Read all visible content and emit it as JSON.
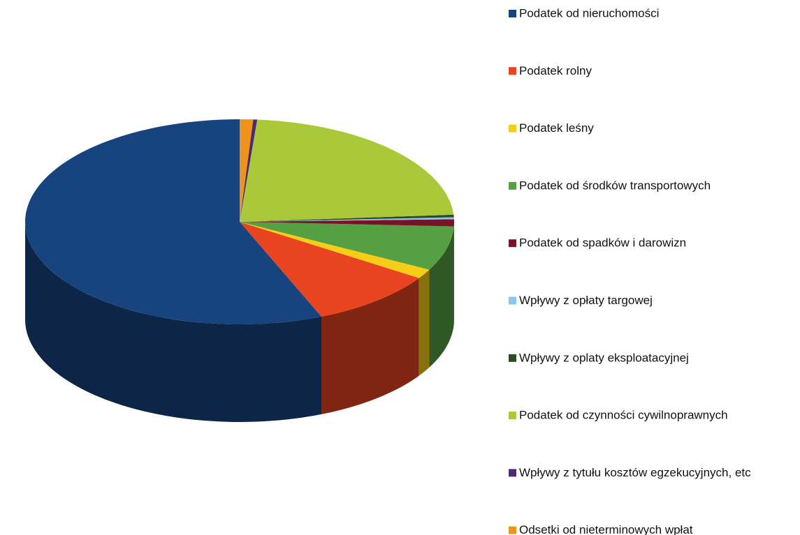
{
  "chart_data": {
    "type": "pie3d",
    "series": [
      {
        "name": "Podatek od nieruchomości",
        "color": "#17437f",
        "value": 56
      },
      {
        "name": "Podatek rolny",
        "color": "#e8441f",
        "value": 9.5
      },
      {
        "name": "Podatek leśny",
        "color": "#f6cd17",
        "value": 1.5
      },
      {
        "name": "Podatek od środków transportowych",
        "color": "#55a043",
        "value": 7
      },
      {
        "name": "Podatek od spadków i darowizn",
        "color": "#7a1226",
        "value": 1.1
      },
      {
        "name": "Wpływy z opłaty targowej",
        "color": "#8cc6e8",
        "value": 0.3
      },
      {
        "name": "Wpływy z oplaty eksploatacyjnej",
        "color": "#2f4b23",
        "value": 0.4
      },
      {
        "name": "Podatek od czynności cywilnoprawnych",
        "color": "#a9c83a",
        "value": 22.5
      },
      {
        "name": "Wpływy z tytułu kosztów egzekucyjnych, etc",
        "color": "#4b2c72",
        "value": 0.3
      },
      {
        "name": "Odsetki od nieterminowych wpłat",
        "color": "#f0931b",
        "value": 1
      }
    ],
    "legend": "right"
  }
}
